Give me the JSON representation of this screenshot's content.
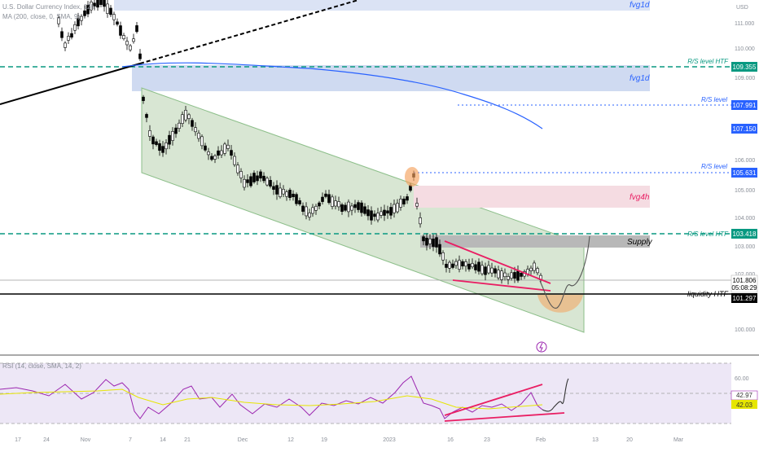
{
  "header": {
    "symbol_title": "U.S. Dollar Currency Index, 12h",
    "ma_legend": "MA (200, close, 0, SMA, 9)"
  },
  "price_axis": {
    "currency": "USD",
    "ticks": [
      "111.000",
      "110.000",
      "109.000",
      "107.150",
      "106.000",
      "105.000",
      "104.000",
      "103.000",
      "102.000",
      "100.000"
    ]
  },
  "levels": [
    {
      "label": "R/S level HTF",
      "value": "109.355",
      "style": "dashed",
      "color": "#089981"
    },
    {
      "label": "R/S level",
      "value": "107.991",
      "style": "dotted",
      "color": "#2962ff"
    },
    {
      "label": "R/S level",
      "value": "105.631",
      "style": "dotted",
      "color": "#2962ff"
    },
    {
      "label": "R/S level HTF",
      "value": "103.418",
      "style": "dashed",
      "color": "#089981"
    },
    {
      "label": "liquidity HTF",
      "value": "101.297",
      "style": "solid",
      "color": "#000000"
    }
  ],
  "ma_value_label": "107.150",
  "current_price": {
    "value": "101.806",
    "countdown": "05:08:29"
  },
  "zones": [
    {
      "label": "fvg1d",
      "color": "#dbe3f5"
    },
    {
      "label": "fvg1d",
      "color": "#cfdaf1"
    },
    {
      "label": "fvg4h",
      "color": "#f5dce2"
    },
    {
      "label": "Supply",
      "color": "#b8b8b8"
    }
  ],
  "time_axis": {
    "ticks": [
      "17",
      "24",
      "Nov",
      "7",
      "14",
      "21",
      "Dec",
      "12",
      "19",
      "2023",
      "16",
      "23",
      "Feb",
      "13",
      "20",
      "Mar"
    ]
  },
  "rsi": {
    "legend": "RSI (14, close, SMA, 14, 2)",
    "axis_label": "60.00",
    "value_rsi": "42.97",
    "value_ma": "42.03"
  },
  "colors": {
    "bull": "#ffffff",
    "bear": "#000000",
    "ma_line": "#2962ff",
    "channel_fill": "#d8e6d3",
    "wedge": "#e91e63",
    "rsi_line": "#9c27b0",
    "rsi_ma": "#e6e600",
    "rsi_band": "#ede7f6",
    "projection": "#555555",
    "highlight": "#f5a25d"
  },
  "icons": {
    "alert": "lightning-icon"
  }
}
